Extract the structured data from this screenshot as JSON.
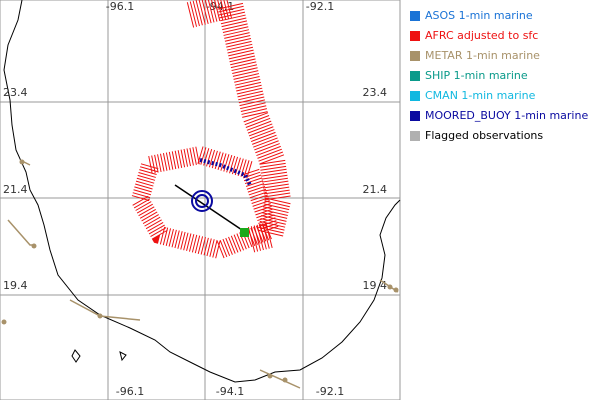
{
  "map": {
    "lon_labels_top": [
      "-96.1",
      "-94.1",
      "-92.1"
    ],
    "lon_labels_bottom": [
      "-96.1",
      "-94.1",
      "-92.1"
    ],
    "lat_labels_left": [
      "23.4",
      "21.4",
      "19.4"
    ],
    "lat_labels_right": [
      "23.4",
      "21.4",
      "19.4"
    ]
  },
  "legend": [
    {
      "label": "ASOS 1-min marine",
      "color": "#1a73d6"
    },
    {
      "label": "AFRC adjusted to sfc",
      "color": "#ee1111"
    },
    {
      "label": "METAR 1-min marine",
      "color": "#a8926a"
    },
    {
      "label": "SHIP 1-min marine",
      "color": "#0a9a8a"
    },
    {
      "label": "CMAN 1-min marine",
      "color": "#10b8e0"
    },
    {
      "label": "MOORED_BUOY 1-min marine",
      "color": "#0a0aa0"
    },
    {
      "label": "Flagged observations",
      "color": "#b0b0b0",
      "text_color": "#000000"
    }
  ]
}
